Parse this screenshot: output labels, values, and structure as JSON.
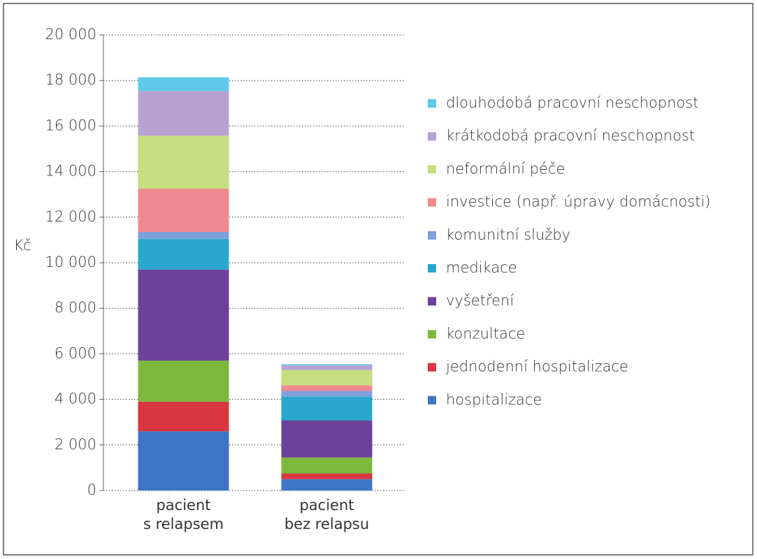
{
  "chart_data": {
    "type": "stacked-bar",
    "y_label": "Kč",
    "categories": [
      "pacient\ns relapsem",
      "pacient\nbez relapsu"
    ],
    "series": [
      {
        "name": "hospitalizace",
        "color": "#3f74c6",
        "values": [
          2600,
          500
        ]
      },
      {
        "name": "jednodenní hospitalizace",
        "color": "#d8373f",
        "values": [
          1300,
          250
        ]
      },
      {
        "name": "konzultace",
        "color": "#7cb83c",
        "values": [
          1800,
          700
        ]
      },
      {
        "name": "vyšetření",
        "color": "#6b4199",
        "values": [
          4000,
          1630
        ]
      },
      {
        "name": "medikace",
        "color": "#2ba7cd",
        "values": [
          1350,
          1040
        ]
      },
      {
        "name": "komunitní služby",
        "color": "#7f9fda",
        "values": [
          300,
          250
        ]
      },
      {
        "name": "investice (např. úpravy domácnosti)",
        "color": "#ee8a8f",
        "values": [
          1900,
          250
        ]
      },
      {
        "name": "neformální péče",
        "color": "#c4de80",
        "values": [
          2330,
          675
        ]
      },
      {
        "name": "krátkodobá pracovní neschopnost",
        "color": "#b8a1d3",
        "values": [
          1960,
          200
        ]
      },
      {
        "name": "dlouhodobá pracovní neschopnost",
        "color": "#5ec9e9",
        "values": [
          600,
          50
        ]
      }
    ],
    "ylim": [
      0,
      20000
    ],
    "yticks": [
      0,
      {
        "value": 2000,
        "label": "2 000"
      },
      {
        "value": 4000,
        "label": "4 000"
      },
      {
        "value": 6000,
        "label": "6 000"
      },
      {
        "value": 8000,
        "label": "8 000"
      },
      {
        "value": 10000,
        "label": "10 000"
      },
      {
        "value": 12000,
        "label": "12 000"
      },
      {
        "value": 14000,
        "label": "14 000"
      },
      {
        "value": 16000,
        "label": "16 000"
      },
      {
        "value": 18000,
        "label": "18 000"
      },
      {
        "value": 20000,
        "label": "20 000"
      }
    ],
    "grid": true
  }
}
